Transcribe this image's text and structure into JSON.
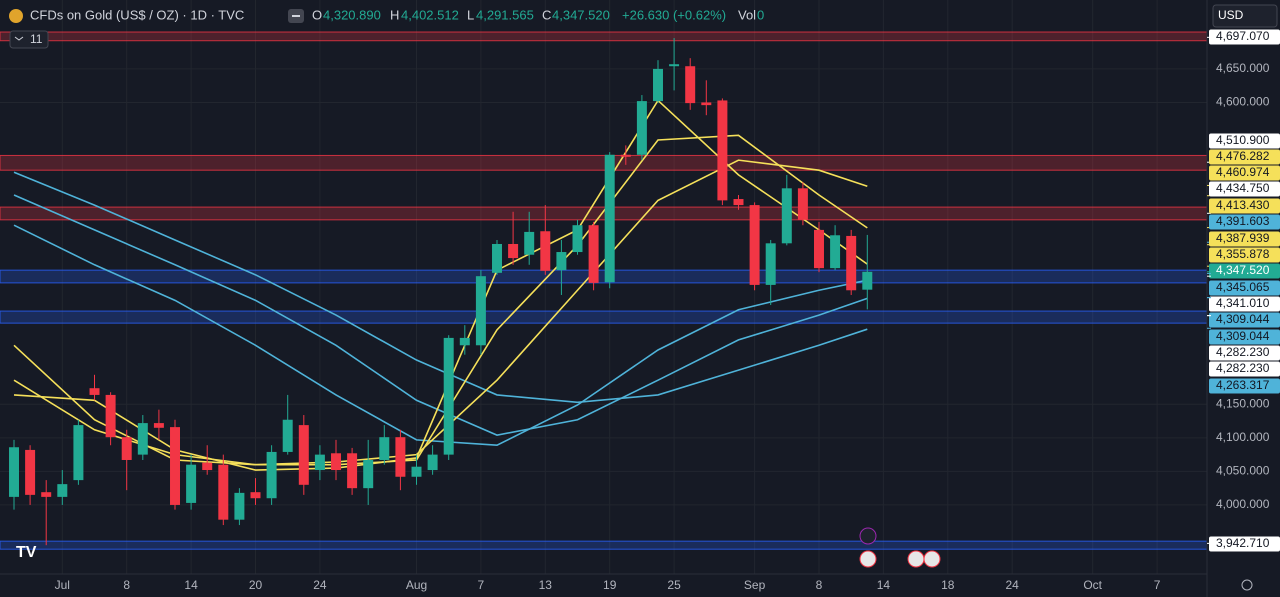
{
  "header": {
    "title": "CFDs on Gold (US$ / OZ) · 1D · TVC",
    "o_label": "O",
    "o": "4,320.890",
    "h_label": "H",
    "h": "4,402.512",
    "l_label": "L",
    "l": "4,291.565",
    "c_label": "C",
    "c": "4,347.520",
    "change": "+26.630 (+0.62%)",
    "vol_label": "Vol",
    "vol": "0",
    "indicators": "11",
    "currency": "USD"
  },
  "chart_data": {
    "type": "candlestick",
    "up_color": "#22ab94",
    "down_color": "#f23645",
    "xlim": [
      -0.87,
      74.1
    ],
    "xticks": [
      {
        "value": 3,
        "label": "Jul"
      },
      {
        "value": 7,
        "label": "8"
      },
      {
        "value": 11,
        "label": "14"
      },
      {
        "value": 15,
        "label": "20"
      },
      {
        "value": 19,
        "label": "24"
      },
      {
        "value": 25,
        "label": "Aug"
      },
      {
        "value": 29,
        "label": "7"
      },
      {
        "value": 33,
        "label": "13"
      },
      {
        "value": 37,
        "label": "19"
      },
      {
        "value": 41,
        "label": "25"
      },
      {
        "value": 46,
        "label": "Sep"
      },
      {
        "value": 50,
        "label": "8"
      },
      {
        "value": 54,
        "label": "14"
      },
      {
        "value": 58,
        "label": "18"
      },
      {
        "value": 62,
        "label": "24"
      },
      {
        "value": 67,
        "label": "Oct"
      },
      {
        "value": 71,
        "label": "7"
      }
    ],
    "ylim": [
      3903,
      4708
    ],
    "yticks": [
      {
        "value": 4000,
        "label": "4,000.000"
      },
      {
        "value": 4050,
        "label": "4,050.000"
      },
      {
        "value": 4100,
        "label": "4,100.000"
      },
      {
        "value": 4150,
        "label": "4,150.000"
      },
      {
        "value": 4600,
        "label": "4,600.000"
      },
      {
        "value": 4650,
        "label": "4,650.000"
      }
    ],
    "grid": true,
    "open": [
      4012,
      4082,
      4019,
      4012,
      4037,
      4174,
      4164,
      4101,
      4075,
      4122,
      4116,
      4003,
      4063,
      4060,
      3978,
      4019,
      4010,
      4079,
      4119,
      4052,
      4077,
      4077,
      4025,
      4067,
      4101,
      4042,
      4052,
      4075,
      4238,
      4238,
      4346,
      4389,
      4373,
      4408,
      4350,
      4377,
      4417,
      4332,
      4522,
      4522,
      4602,
      4654,
      4654,
      4600,
      4603,
      4456,
      4447,
      4328,
      4390,
      4472,
      4410,
      4353,
      4401,
      4320.89
    ],
    "high": [
      4097,
      4089,
      4037,
      4052,
      4127,
      4194,
      4168,
      4112,
      4134,
      4142,
      4127,
      4075,
      4089,
      4075,
      4025,
      4040,
      4089,
      4164,
      4134,
      4089,
      4097,
      4085,
      4097,
      4119,
      4112,
      4075,
      4089,
      4253,
      4268,
      4350,
      4395,
      4437,
      4437,
      4447,
      4395,
      4425,
      4422,
      4526,
      4536,
      4611,
      4663,
      4696,
      4666,
      4633,
      4606,
      4462,
      4451,
      4395,
      4492,
      4481,
      4422,
      4417,
      4410,
      4402.512
    ],
    "low": [
      3993,
      4000,
      3940,
      4000,
      4030,
      4156,
      4089,
      4022,
      4067,
      4097,
      3993,
      3993,
      4045,
      3970,
      3970,
      4000,
      4000,
      4075,
      4015,
      4037,
      4037,
      4015,
      4000,
      4060,
      4022,
      4030,
      4045,
      4067,
      4224,
      4224,
      4343,
      4358,
      4358,
      4343,
      4313,
      4373,
      4320,
      4323,
      4507,
      4514,
      4599,
      4618,
      4589,
      4581,
      4447,
      4440,
      4320,
      4298,
      4387,
      4417,
      4347,
      4350,
      4313,
      4291.565
    ],
    "close": [
      4086,
      4015,
      4012,
      4031,
      4119,
      4164,
      4101,
      4067,
      4122,
      4115,
      4000,
      4060,
      4052,
      3978,
      4018,
      4010,
      4079,
      4127,
      4030,
      4075,
      4052,
      4025,
      4067,
      4101,
      4042,
      4057,
      4075,
      4249,
      4249,
      4341,
      4389,
      4368,
      4407,
      4349,
      4377,
      4417,
      4331,
      4522,
      4519,
      4602,
      4650,
      4657,
      4599,
      4596,
      4454,
      4447,
      4328,
      4390,
      4472,
      4425,
      4353,
      4402,
      4320,
      4347.52
    ],
    "series": [
      {
        "color": "#4fb3d9",
        "x": [
          0,
          5,
          10,
          15,
          20,
          25,
          30,
          35,
          40,
          45,
          50,
          53
        ],
        "values": [
          4496,
          4447,
          4395,
          4343,
          4283,
          4216,
          4164,
          4153,
          4164,
          4201,
          4238,
          4262
        ]
      },
      {
        "color": "#4fb3d9",
        "x": [
          0,
          5,
          10,
          15,
          20,
          25,
          30,
          35,
          40,
          45,
          50,
          53
        ],
        "values": [
          4462,
          4410,
          4358,
          4305,
          4238,
          4156,
          4104,
          4127,
          4186,
          4246,
          4283,
          4308
        ]
      },
      {
        "color": "#4fb3d9",
        "x": [
          0,
          5,
          10,
          15,
          20,
          25,
          30,
          35,
          40,
          45,
          50,
          53
        ],
        "values": [
          4417,
          4358,
          4305,
          4238,
          4164,
          4097,
          4089,
          4149,
          4231,
          4291,
          4320,
          4335
        ]
      },
      {
        "color": "#f5e05a",
        "x": [
          0,
          5,
          10,
          15,
          20,
          25,
          30,
          35,
          40,
          45,
          50,
          53
        ],
        "values": [
          4186,
          4112,
          4075,
          4060,
          4064,
          4075,
          4186,
          4320,
          4454,
          4514,
          4499,
          4475
        ]
      },
      {
        "color": "#f5e05a",
        "x": [
          0,
          5,
          10,
          15,
          20,
          25,
          30,
          35,
          40,
          45,
          50,
          53
        ],
        "values": [
          4238,
          4127,
          4067,
          4060,
          4060,
          4067,
          4261,
          4387,
          4544,
          4551,
          4462,
          4413
        ]
      },
      {
        "color": "#f5e05a",
        "x": [
          0,
          5,
          10,
          15,
          20,
          25,
          30,
          35,
          40,
          45,
          50,
          53
        ],
        "values": [
          4164,
          4156,
          4082,
          4052,
          4055,
          4070,
          4350,
          4410,
          4603,
          4492,
          4410,
          4359
        ]
      }
    ],
    "zones": [
      {
        "from": 4692,
        "to": 4705,
        "color": "#f23645"
      },
      {
        "from": 4499,
        "to": 4521,
        "color": "#f23645"
      },
      {
        "from": 4425,
        "to": 4444,
        "color": "#f23645"
      },
      {
        "from": 4331,
        "to": 4350,
        "color": "#2962ff"
      },
      {
        "from": 4271,
        "to": 4289,
        "color": "#2962ff"
      },
      {
        "from": 3934,
        "to": 3946,
        "color": "#2962ff"
      }
    ],
    "price_labels": [
      {
        "value": 4697.07,
        "label": "4,697.070",
        "color": "#ffffff"
      },
      {
        "value": 4510.9,
        "label": "4,510.900",
        "color": "#ffffff"
      },
      {
        "value": 4476.282,
        "label": "4,476.282",
        "color": "#f5e05a"
      },
      {
        "value": 4460.974,
        "label": "4,460.974",
        "color": "#f5e05a"
      },
      {
        "value": 4434.75,
        "label": "4,434.750",
        "color": "#ffffff"
      },
      {
        "value": 4413.43,
        "label": "4,413.430",
        "color": "#f5e05a"
      },
      {
        "value": 4391.603,
        "label": "4,391.603",
        "color": "#4fb3d9"
      },
      {
        "value": 4387.939,
        "label": "4,387.939",
        "color": "#f5e05a"
      },
      {
        "value": 4355.878,
        "label": "4,355.878",
        "color": "#f5e05a"
      },
      {
        "value": 4347.52,
        "label": "4,347.520",
        "color": "#22ab94"
      },
      {
        "value": 4345.065,
        "label": "4,345.065",
        "color": "#4fb3d9"
      },
      {
        "value": 4341.01,
        "label": "4,341.010",
        "color": "#ffffff"
      },
      {
        "value": 4309.044,
        "label": "4,309.044",
        "color": "#4fb3d9"
      },
      {
        "value": 4309.044,
        "label": "4,309.044",
        "color": "#4fb3d9"
      },
      {
        "value": 4282.23,
        "label": "4,282.230",
        "color": "#ffffff"
      },
      {
        "value": 4282.23,
        "label": "4,282.230",
        "color": "#ffffff"
      },
      {
        "value": 4263.317,
        "label": "4,263.317",
        "color": "#4fb3d9"
      },
      {
        "value": 3942.71,
        "label": "3,942.710",
        "color": "#ffffff"
      }
    ]
  }
}
